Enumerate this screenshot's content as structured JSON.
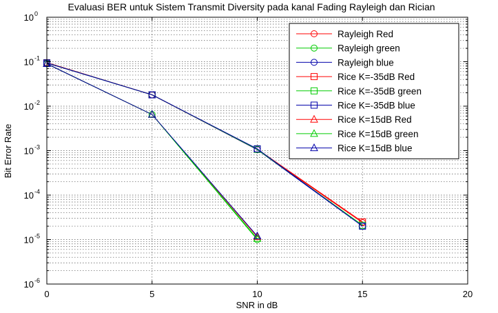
{
  "chart_data": {
    "type": "line",
    "title": "Evaluasi BER untuk Sistem Transmit Diversity pada kanal Fading Rayleigh dan Rician",
    "xlabel": "SNR in dB",
    "ylabel": "Bit Error Rate",
    "xlim": [
      0,
      20
    ],
    "ylim": [
      1e-06,
      1
    ],
    "yscale": "log",
    "grid": true,
    "legend_position": "top-right",
    "x_ticks": [
      "0",
      "5",
      "10",
      "15",
      "20"
    ],
    "y_ticks": [
      {
        "base": "10",
        "exp": "0"
      },
      {
        "base": "10",
        "exp": "-1"
      },
      {
        "base": "10",
        "exp": "-2"
      },
      {
        "base": "10",
        "exp": "-3"
      },
      {
        "base": "10",
        "exp": "-4"
      },
      {
        "base": "10",
        "exp": "-5"
      },
      {
        "base": "10",
        "exp": "-6"
      }
    ],
    "series": [
      {
        "name": "Rayleigh Red",
        "color": "#ff0000",
        "marker": "circle",
        "x": [
          0,
          5,
          10,
          15
        ],
        "y": [
          0.095,
          0.018,
          0.00105,
          2.4e-05
        ]
      },
      {
        "name": "Rayleigh green",
        "color": "#00cc00",
        "marker": "circle",
        "x": [
          0,
          5,
          10
        ],
        "y": [
          0.09,
          0.0065,
          1e-05
        ]
      },
      {
        "name": "Rayleigh blue",
        "color": "#0000aa",
        "marker": "circle",
        "x": [
          0,
          5,
          10,
          15
        ],
        "y": [
          0.093,
          0.018,
          0.00105,
          2e-05
        ]
      },
      {
        "name": "Rice K=-35dB Red",
        "color": "#ff0000",
        "marker": "square",
        "x": [
          0,
          5,
          10,
          15
        ],
        "y": [
          0.095,
          0.018,
          0.00108,
          2.5e-05
        ]
      },
      {
        "name": "Rice K=-35dB green",
        "color": "#00cc00",
        "marker": "square",
        "x": [
          0,
          5,
          10,
          15
        ],
        "y": [
          0.094,
          0.018,
          0.00107,
          2.1e-05
        ]
      },
      {
        "name": "Rice K=-35dB blue",
        "color": "#0000aa",
        "marker": "square",
        "x": [
          0,
          5,
          10,
          15
        ],
        "y": [
          0.094,
          0.018,
          0.0011,
          2e-05
        ]
      },
      {
        "name": "Rice K=15dB Red",
        "color": "#ff0000",
        "marker": "triangle",
        "x": [
          0,
          5,
          10
        ],
        "y": [
          0.09,
          0.0065,
          1.15e-05
        ]
      },
      {
        "name": "Rice K=15dB green",
        "color": "#00cc00",
        "marker": "triangle",
        "x": [
          0,
          5,
          10
        ],
        "y": [
          0.09,
          0.0065,
          1.05e-05
        ]
      },
      {
        "name": "Rice K=15dB blue",
        "color": "#0000aa",
        "marker": "triangle",
        "x": [
          0,
          5,
          10
        ],
        "y": [
          0.09,
          0.0065,
          1.2e-05
        ]
      }
    ]
  }
}
